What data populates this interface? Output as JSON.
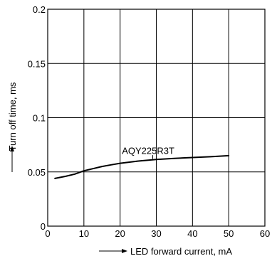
{
  "chart_data": {
    "type": "line",
    "xlabel": "LED forward current, mA",
    "ylabel": "Turn off time, ms",
    "xlim": [
      0,
      60
    ],
    "ylim": [
      0,
      0.2
    ],
    "xticks": [
      0,
      10,
      20,
      30,
      40,
      50,
      60
    ],
    "xtick_labels": [
      "0",
      "10",
      "20",
      "30",
      "40",
      "50",
      "60"
    ],
    "yticks": [
      0,
      0.05,
      0.1,
      0.15,
      0.2
    ],
    "ytick_labels": [
      "0",
      "0.05",
      "0.1",
      "0.15",
      "0.2"
    ],
    "grid": true,
    "series": [
      {
        "name": "AQY225R3T",
        "x": [
          2,
          5,
          7.5,
          10,
          12.5,
          15,
          17.5,
          20,
          25,
          30,
          35,
          40,
          45,
          50
        ],
        "y": [
          0.044,
          0.046,
          0.048,
          0.051,
          0.053,
          0.055,
          0.0565,
          0.058,
          0.06,
          0.0615,
          0.0625,
          0.0633,
          0.064,
          0.065
        ]
      }
    ]
  }
}
